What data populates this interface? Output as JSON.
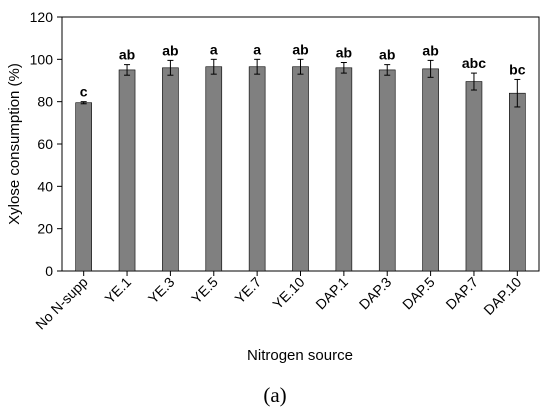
{
  "chart_data": {
    "type": "bar",
    "xlabel": "Nitrogen source",
    "ylabel": "Xylose consumption (%)",
    "ylim": [
      0,
      120
    ],
    "yticks": [
      0,
      20,
      40,
      60,
      80,
      100,
      120
    ],
    "categories": [
      "No N-supp",
      "YE.1",
      "YE.3",
      "YE.5",
      "YE.7",
      "YE.10",
      "DAP.1",
      "DAP.3",
      "DAP.5",
      "DAP.7",
      "DAP.10"
    ],
    "values": [
      79.5,
      95,
      96,
      96.5,
      96.5,
      96.5,
      96,
      95,
      95.5,
      89.5,
      84
    ],
    "errors": [
      0.5,
      2.5,
      3.5,
      3.5,
      3.5,
      3.5,
      2.5,
      2.5,
      4,
      4,
      6.5
    ],
    "significance": [
      "c",
      "ab",
      "ab",
      "a",
      "a",
      "ab",
      "ab",
      "ab",
      "ab",
      "abc",
      "bc"
    ],
    "bar_color": "#808080",
    "grid": false,
    "legend": "none"
  },
  "panel_label": "(a)"
}
